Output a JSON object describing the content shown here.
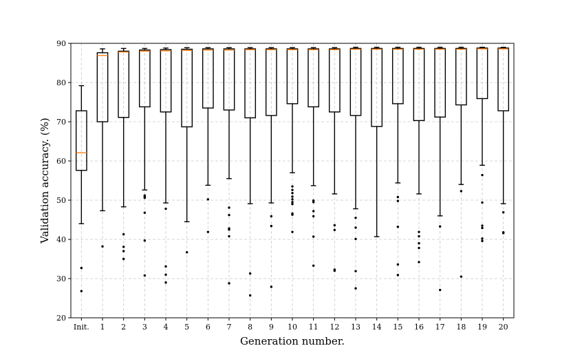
{
  "chart_data": {
    "type": "box",
    "xlabel": "Generation number.",
    "ylabel": "Validation accuracy. (%)",
    "ylim": [
      20,
      90
    ],
    "yticks": [
      20,
      30,
      40,
      50,
      60,
      70,
      80,
      90
    ],
    "grid": true,
    "median_color": "#ff7f0e",
    "categories": [
      "Init.",
      "1",
      "2",
      "3",
      "4",
      "5",
      "6",
      "7",
      "8",
      "9",
      "10",
      "11",
      "12",
      "13",
      "14",
      "15",
      "16",
      "17",
      "18",
      "19",
      "20"
    ],
    "boxes": [
      {
        "whisker_low": 44.0,
        "q1": 57.6,
        "median": 62.1,
        "q3": 72.8,
        "whisker_high": 79.2,
        "outliers": [
          32.7,
          26.8
        ]
      },
      {
        "whisker_low": 47.3,
        "q1": 70.0,
        "median": 86.9,
        "q3": 87.6,
        "whisker_high": 88.6,
        "outliers": [
          38.2
        ]
      },
      {
        "whisker_low": 48.3,
        "q1": 71.1,
        "median": 87.8,
        "q3": 88.0,
        "whisker_high": 88.7,
        "outliers": [
          41.3,
          38.1,
          37.0,
          35.0
        ]
      },
      {
        "whisker_low": 52.6,
        "q1": 73.8,
        "median": 88.0,
        "q3": 88.3,
        "whisker_high": 88.7,
        "outliers": [
          51.2,
          50.9,
          50.6,
          46.8,
          39.7,
          30.8
        ]
      },
      {
        "whisker_low": 49.3,
        "q1": 72.5,
        "median": 88.1,
        "q3": 88.4,
        "whisker_high": 88.8,
        "outliers": [
          47.8,
          33.1,
          31.0,
          29.0
        ]
      },
      {
        "whisker_low": 44.5,
        "q1": 68.7,
        "median": 88.2,
        "q3": 88.5,
        "whisker_high": 88.9,
        "outliers": [
          36.7
        ]
      },
      {
        "whisker_low": 53.8,
        "q1": 73.5,
        "median": 88.3,
        "q3": 88.6,
        "whisker_high": 88.9,
        "outliers": [
          50.2,
          41.9
        ]
      },
      {
        "whisker_low": 55.5,
        "q1": 73.0,
        "median": 88.3,
        "q3": 88.6,
        "whisker_high": 88.9,
        "outliers": [
          48.1,
          46.2,
          42.8,
          42.5,
          40.8,
          28.8
        ]
      },
      {
        "whisker_low": 49.1,
        "q1": 71.0,
        "median": 88.4,
        "q3": 88.6,
        "whisker_high": 88.9,
        "outliers": [
          31.3,
          25.7
        ]
      },
      {
        "whisker_low": 49.3,
        "q1": 71.6,
        "median": 88.4,
        "q3": 88.6,
        "whisker_high": 88.9,
        "outliers": [
          45.9,
          43.4,
          27.9
        ]
      },
      {
        "whisker_low": 57.0,
        "q1": 74.6,
        "median": 88.4,
        "q3": 88.6,
        "whisker_high": 88.9,
        "outliers": [
          53.5,
          52.6,
          51.8,
          50.9,
          50.2,
          49.5,
          49.0,
          46.6,
          46.3,
          41.9
        ]
      },
      {
        "whisker_low": 53.7,
        "q1": 73.8,
        "median": 88.4,
        "q3": 88.6,
        "whisker_high": 88.9,
        "outliers": [
          49.9,
          49.5,
          47.2,
          45.9,
          40.7,
          33.3
        ]
      },
      {
        "whisker_low": 51.6,
        "q1": 72.5,
        "median": 88.4,
        "q3": 88.6,
        "whisker_high": 88.9,
        "outliers": [
          43.6,
          42.4,
          32.3,
          32.0
        ]
      },
      {
        "whisker_low": 47.8,
        "q1": 71.6,
        "median": 88.5,
        "q3": 88.7,
        "whisker_high": 89.0,
        "outliers": [
          45.5,
          43.0,
          40.1,
          31.9,
          27.5
        ]
      },
      {
        "whisker_low": 40.7,
        "q1": 68.8,
        "median": 88.5,
        "q3": 88.7,
        "whisker_high": 89.0,
        "outliers": []
      },
      {
        "whisker_low": 54.4,
        "q1": 74.6,
        "median": 88.5,
        "q3": 88.7,
        "whisker_high": 89.0,
        "outliers": [
          50.8,
          49.8,
          43.2,
          33.6,
          30.9
        ]
      },
      {
        "whisker_low": 51.6,
        "q1": 70.3,
        "median": 88.5,
        "q3": 88.7,
        "whisker_high": 89.0,
        "outliers": [
          41.9,
          40.8,
          39.0,
          37.8,
          34.2
        ]
      },
      {
        "whisker_low": 46.0,
        "q1": 71.2,
        "median": 88.5,
        "q3": 88.7,
        "whisker_high": 89.0,
        "outliers": [
          43.3,
          27.1
        ]
      },
      {
        "whisker_low": 54.0,
        "q1": 74.3,
        "median": 88.5,
        "q3": 88.7,
        "whisker_high": 89.0,
        "outliers": [
          52.3,
          30.5
        ]
      },
      {
        "whisker_low": 58.9,
        "q1": 75.9,
        "median": 88.6,
        "q3": 88.8,
        "whisker_high": 89.0,
        "outliers": [
          56.4,
          49.4,
          43.5,
          42.9,
          40.2,
          39.6
        ]
      },
      {
        "whisker_low": 49.1,
        "q1": 72.8,
        "median": 88.6,
        "q3": 88.8,
        "whisker_high": 89.0,
        "outliers": [
          46.9,
          41.8,
          41.6
        ]
      }
    ]
  }
}
